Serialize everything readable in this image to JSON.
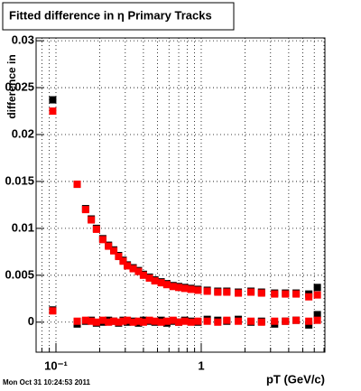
{
  "chart_data": {
    "type": "scatter",
    "title": "Fitted difference in  η  Primary Tracks",
    "ylabel": "difference in",
    "xlabel": "pT (GeV/c)",
    "footer": "Mon Oct 31 10:24:53 2011",
    "xlog": true,
    "grid": true,
    "xlim": [
      0.073,
      7.1
    ],
    "ylim": [
      -0.0032,
      0.0303
    ],
    "xticks": [
      {
        "value": 0.1,
        "label": "10⁻¹"
      },
      1
    ],
    "xminor_ticks": [
      0.08,
      0.09,
      0.2,
      0.3,
      0.4,
      0.5,
      0.6,
      0.7,
      0.8,
      0.9,
      2,
      3,
      4,
      5,
      6,
      7
    ],
    "yticks": [
      0,
      0.005,
      0.01,
      0.015,
      0.02,
      0.025,
      0.03
    ],
    "x": [
      0.095,
      0.14,
      0.16,
      0.175,
      0.19,
      0.21,
      0.23,
      0.25,
      0.27,
      0.29,
      0.31,
      0.34,
      0.37,
      0.4,
      0.44,
      0.48,
      0.53,
      0.58,
      0.64,
      0.7,
      0.77,
      0.85,
      0.95,
      1.1,
      1.3,
      1.5,
      1.8,
      2.2,
      2.6,
      3.2,
      3.8,
      4.5,
      5.5,
      6.3
    ],
    "series": [
      {
        "color": "#000000",
        "values": [
          0.0237,
          0.0147,
          0.0121,
          0.011,
          0.01,
          0.0089,
          0.0082,
          0.0077,
          0.0071,
          0.0066,
          0.0061,
          0.0058,
          0.0055,
          0.0051,
          0.0048,
          0.0045,
          0.0043,
          0.0041,
          0.0039,
          0.0038,
          0.0037,
          0.0036,
          0.0035,
          0.0034,
          0.0033,
          0.0033,
          0.0032,
          0.0033,
          0.0032,
          0.0031,
          0.0031,
          0.0031,
          0.003,
          0.0037
        ]
      },
      {
        "color": "#ff0000",
        "values": [
          0.0225,
          0.0147,
          0.012,
          0.0109,
          0.0099,
          0.0088,
          0.0081,
          0.0076,
          0.007,
          0.0065,
          0.006,
          0.0057,
          0.0054,
          0.005,
          0.0047,
          0.0044,
          0.0042,
          0.004,
          0.0038,
          0.0037,
          0.0036,
          0.0035,
          0.0034,
          0.0033,
          0.0032,
          0.0032,
          0.0031,
          0.0032,
          0.0031,
          0.003,
          0.003,
          0.003,
          0.0027,
          0.0029
        ]
      },
      {
        "color": "#000000",
        "values": [
          0.0013,
          -0.0002,
          0.0001,
          0.0002,
          -0.0001,
          0.0,
          0.0002,
          0.0001,
          -0.0001,
          0.0002,
          0.0,
          0.0001,
          -0.0001,
          0.0002,
          0.0001,
          0.0,
          0.0002,
          -0.0001,
          0.0001,
          0.0,
          0.0002,
          0.0001,
          0.0,
          0.0003,
          0.0002,
          0.0001,
          0.0003,
          0.0,
          0.0001,
          -0.0002,
          0.0001,
          0.0002,
          -0.0003,
          0.0008
        ]
      },
      {
        "color": "#ff0000",
        "values": [
          0.0012,
          0.0001,
          0.0002,
          0.0001,
          0.0,
          0.0002,
          0.0,
          0.0001,
          0.0,
          0.0001,
          0.0002,
          0.0,
          0.0001,
          0.0,
          0.0002,
          0.0001,
          0.0,
          0.0001,
          0.0002,
          0.0,
          0.0001,
          0.0,
          0.0001,
          0.0001,
          0.0,
          0.0002,
          0.0001,
          0.0001,
          0.0,
          0.0001,
          0.0001,
          0.0002,
          0.0001,
          0.0002
        ]
      }
    ]
  }
}
